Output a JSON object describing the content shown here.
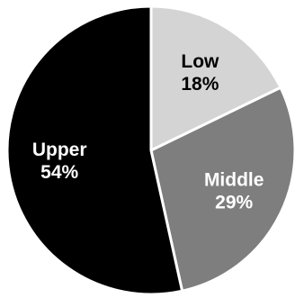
{
  "chart_data": {
    "type": "pie",
    "slices": [
      {
        "label": "Low",
        "value": 18,
        "display": "18%",
        "color": "#d4d4d4",
        "text_color": "#000000"
      },
      {
        "label": "Middle",
        "value": 29,
        "display": "29%",
        "color": "#7e7e7e",
        "text_color": "#ffffff"
      },
      {
        "label": "Upper",
        "value": 54,
        "display": "54%",
        "color": "#000000",
        "text_color": "#ffffff"
      }
    ],
    "start_angle_deg": 0,
    "direction": "clockwise",
    "edge_color": "#ffffff"
  }
}
